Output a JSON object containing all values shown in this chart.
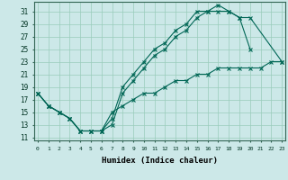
{
  "xlabel": "Humidex (Indice chaleur)",
  "bg_color": "#cce8e8",
  "grid_color": "#99ccbb",
  "line_color": "#006655",
  "line1_x": [
    0,
    1,
    2,
    3,
    4,
    5,
    6,
    7,
    8,
    9,
    10,
    11,
    12,
    13,
    14,
    15,
    16,
    17,
    18,
    19,
    20,
    23
  ],
  "line1_y": [
    18,
    16,
    15,
    14,
    12,
    12,
    12,
    13,
    18,
    20,
    22,
    24,
    25,
    27,
    28,
    30,
    31,
    31,
    31,
    30,
    30,
    23
  ],
  "line2_x": [
    0,
    1,
    2,
    3,
    4,
    5,
    6,
    7,
    8,
    9,
    10,
    11,
    12,
    13,
    14,
    15,
    16,
    17,
    18,
    19,
    20
  ],
  "line2_y": [
    18,
    16,
    15,
    14,
    12,
    12,
    12,
    14,
    19,
    21,
    23,
    25,
    26,
    28,
    29,
    31,
    31,
    32,
    31,
    30,
    25
  ],
  "line3_x": [
    0,
    1,
    2,
    3,
    4,
    5,
    6,
    7,
    8,
    9,
    10,
    11,
    12,
    13,
    14,
    15,
    16,
    17,
    18,
    19,
    20,
    21,
    22,
    23
  ],
  "line3_y": [
    18,
    16,
    15,
    14,
    12,
    12,
    12,
    15,
    16,
    17,
    18,
    18,
    19,
    20,
    20,
    21,
    21,
    22,
    22,
    22,
    22,
    22,
    23,
    23
  ],
  "xlim": [
    -0.3,
    23.3
  ],
  "ylim": [
    10.5,
    32.5
  ],
  "yticks": [
    11,
    13,
    15,
    17,
    19,
    21,
    23,
    25,
    27,
    29,
    31
  ],
  "xticks": [
    0,
    1,
    2,
    3,
    4,
    5,
    6,
    7,
    8,
    9,
    10,
    11,
    12,
    13,
    14,
    15,
    16,
    17,
    18,
    19,
    20,
    21,
    22,
    23
  ]
}
